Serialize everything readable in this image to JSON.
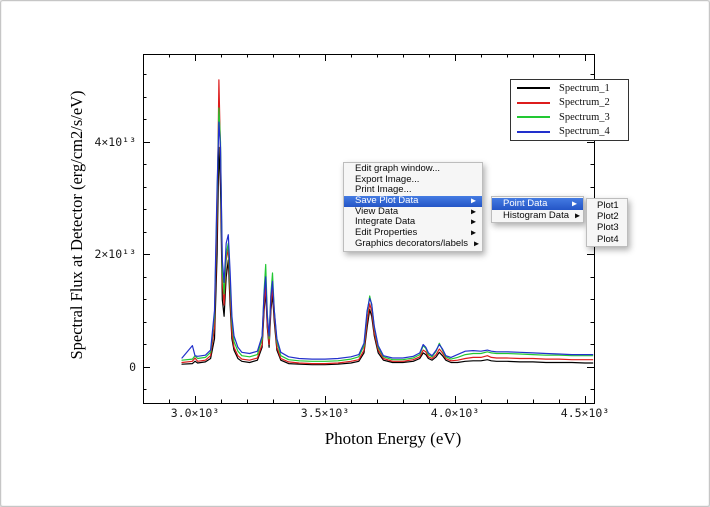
{
  "icons": {
    "submenu_arrow": "▶"
  },
  "chart_data": {
    "type": "line",
    "title": "",
    "xlabel": "Photon Energy (eV)",
    "ylabel": "Spectral Flux at Detector (erg/cm2/s/eV)",
    "grid": false,
    "legend_position": "top-right",
    "xlim": [
      2800,
      4535
    ],
    "ylim_1e13": [
      -0.64,
      5.56
    ],
    "x_major_ticks": [
      3000,
      3500,
      4000,
      4500
    ],
    "x_tick_labels": [
      "3.0×10³",
      "3.5×10³",
      "4.0×10³",
      "4.5×10³"
    ],
    "x_minor_step": 100,
    "y_major_ticks_1e13": [
      0,
      2,
      4
    ],
    "y_tick_labels": [
      "0",
      "2×10¹³",
      "4×10¹³"
    ],
    "y_minor_step_1e13": 0.4,
    "x_eV": [
      2950,
      2990,
      3000,
      3010,
      3040,
      3060,
      3075,
      3085,
      3092,
      3098,
      3105,
      3112,
      3120,
      3128,
      3135,
      3142,
      3150,
      3165,
      3180,
      3210,
      3240,
      3258,
      3266,
      3272,
      3278,
      3285,
      3292,
      3298,
      3305,
      3315,
      3330,
      3360,
      3400,
      3450,
      3500,
      3550,
      3600,
      3630,
      3650,
      3662,
      3672,
      3680,
      3690,
      3705,
      3725,
      3760,
      3800,
      3840,
      3865,
      3878,
      3888,
      3898,
      3912,
      3928,
      3940,
      3952,
      3965,
      3985,
      4010,
      4040,
      4070,
      4100,
      4125,
      4140,
      4160,
      4200,
      4250,
      4300,
      4350,
      4400,
      4450,
      4500,
      4530
    ],
    "series": [
      {
        "name": "Spectrum_1",
        "color": "#000000",
        "values_1e13": [
          0.05,
          0.06,
          0.1,
          0.07,
          0.09,
          0.15,
          0.5,
          2.0,
          3.9,
          3.2,
          1.2,
          0.9,
          1.6,
          1.9,
          1.1,
          0.5,
          0.3,
          0.15,
          0.1,
          0.08,
          0.12,
          0.35,
          1.0,
          1.35,
          0.7,
          0.35,
          1.0,
          1.3,
          0.8,
          0.3,
          0.12,
          0.06,
          0.05,
          0.04,
          0.04,
          0.05,
          0.07,
          0.1,
          0.25,
          0.7,
          1.02,
          0.9,
          0.55,
          0.25,
          0.12,
          0.08,
          0.08,
          0.1,
          0.15,
          0.25,
          0.22,
          0.15,
          0.12,
          0.18,
          0.26,
          0.2,
          0.12,
          0.08,
          0.08,
          0.1,
          0.11,
          0.11,
          0.13,
          0.11,
          0.1,
          0.1,
          0.09,
          0.09,
          0.08,
          0.08,
          0.08,
          0.07,
          0.07
        ]
      },
      {
        "name": "Spectrum_2",
        "color": "#dd1c1c",
        "values_1e13": [
          0.08,
          0.1,
          0.16,
          0.1,
          0.12,
          0.2,
          0.7,
          2.6,
          5.1,
          3.8,
          1.5,
          1.1,
          1.9,
          2.1,
          1.3,
          0.6,
          0.35,
          0.2,
          0.14,
          0.12,
          0.16,
          0.4,
          1.1,
          1.45,
          0.75,
          0.4,
          1.1,
          1.42,
          0.9,
          0.35,
          0.15,
          0.09,
          0.07,
          0.06,
          0.06,
          0.07,
          0.1,
          0.13,
          0.3,
          0.8,
          1.12,
          1.0,
          0.6,
          0.3,
          0.15,
          0.1,
          0.1,
          0.13,
          0.18,
          0.3,
          0.27,
          0.18,
          0.15,
          0.22,
          0.32,
          0.25,
          0.15,
          0.11,
          0.12,
          0.15,
          0.17,
          0.17,
          0.2,
          0.17,
          0.16,
          0.16,
          0.15,
          0.15,
          0.14,
          0.14,
          0.13,
          0.13,
          0.13
        ]
      },
      {
        "name": "Spectrum_3",
        "color": "#22c833",
        "values_1e13": [
          0.12,
          0.14,
          0.2,
          0.15,
          0.17,
          0.26,
          0.9,
          3.0,
          4.6,
          4.0,
          1.7,
          1.3,
          2.0,
          2.2,
          1.5,
          0.8,
          0.45,
          0.28,
          0.2,
          0.18,
          0.22,
          0.5,
          1.35,
          1.82,
          0.95,
          0.5,
          1.3,
          1.67,
          1.0,
          0.45,
          0.2,
          0.13,
          0.11,
          0.1,
          0.1,
          0.11,
          0.14,
          0.18,
          0.38,
          0.95,
          1.26,
          1.1,
          0.7,
          0.35,
          0.18,
          0.13,
          0.13,
          0.16,
          0.22,
          0.38,
          0.33,
          0.22,
          0.18,
          0.28,
          0.42,
          0.3,
          0.18,
          0.14,
          0.17,
          0.22,
          0.24,
          0.24,
          0.27,
          0.25,
          0.24,
          0.24,
          0.23,
          0.22,
          0.21,
          0.21,
          0.2,
          0.2,
          0.2
        ]
      },
      {
        "name": "Spectrum_4",
        "color": "#2230cc",
        "values_1e13": [
          0.16,
          0.38,
          0.2,
          0.19,
          0.21,
          0.3,
          1.0,
          3.2,
          4.35,
          3.9,
          1.9,
          1.5,
          2.2,
          2.35,
          1.7,
          0.9,
          0.55,
          0.35,
          0.26,
          0.24,
          0.28,
          0.55,
          1.3,
          1.6,
          0.9,
          0.55,
          1.25,
          1.52,
          1.0,
          0.5,
          0.26,
          0.18,
          0.15,
          0.14,
          0.14,
          0.15,
          0.18,
          0.22,
          0.42,
          1.0,
          1.22,
          1.12,
          0.72,
          0.38,
          0.2,
          0.16,
          0.16,
          0.19,
          0.25,
          0.4,
          0.35,
          0.25,
          0.2,
          0.3,
          0.4,
          0.32,
          0.2,
          0.17,
          0.22,
          0.28,
          0.29,
          0.28,
          0.3,
          0.28,
          0.27,
          0.27,
          0.26,
          0.25,
          0.24,
          0.23,
          0.22,
          0.22,
          0.22
        ]
      }
    ]
  },
  "context_menu": {
    "highlight_color": "#2e5fce",
    "items": [
      {
        "label": "Edit graph window...",
        "has_submenu": false,
        "highlighted": false
      },
      {
        "label": "Export Image...",
        "has_submenu": false,
        "highlighted": false
      },
      {
        "label": "Print Image...",
        "has_submenu": false,
        "highlighted": false
      },
      {
        "label": "Save Plot Data",
        "has_submenu": true,
        "highlighted": true
      },
      {
        "label": "View Data",
        "has_submenu": true,
        "highlighted": false
      },
      {
        "label": "Integrate Data",
        "has_submenu": true,
        "highlighted": false
      },
      {
        "label": "Edit Properties",
        "has_submenu": true,
        "highlighted": false
      },
      {
        "label": "Graphics decorators/labels",
        "has_submenu": true,
        "highlighted": false
      }
    ]
  },
  "submenu_save": {
    "items": [
      {
        "label": "Point Data",
        "has_submenu": true,
        "highlighted": true
      },
      {
        "label": "Histogram Data",
        "has_submenu": true,
        "highlighted": false
      }
    ]
  },
  "submenu_point": {
    "items": [
      {
        "label": "Plot1"
      },
      {
        "label": "Plot2"
      },
      {
        "label": "Plot3"
      },
      {
        "label": "Plot4"
      }
    ]
  }
}
